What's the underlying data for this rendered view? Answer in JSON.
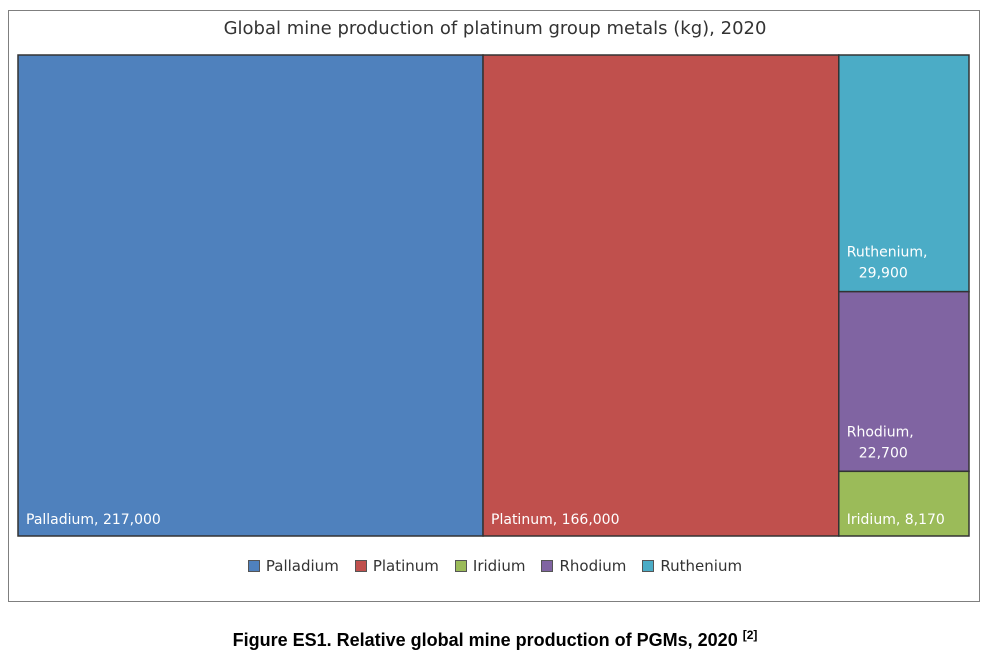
{
  "chart_data": {
    "type": "treemap",
    "title": "Global mine production of platinum group metals (kg), 2020",
    "items": [
      {
        "name": "Palladium",
        "value": 217000,
        "label": "Palladium, 217,000",
        "color": "#4f81bd"
      },
      {
        "name": "Platinum",
        "value": 166000,
        "label": "Platinum, 166,000",
        "color": "#c0504d"
      },
      {
        "name": "Ruthenium",
        "value": 29900,
        "label_lines": [
          "Ruthenium,",
          "29,900"
        ],
        "color": "#4bacc6"
      },
      {
        "name": "Rhodium",
        "value": 22700,
        "label_lines": [
          "Rhodium,",
          "22,700"
        ],
        "color": "#8064a2"
      },
      {
        "name": "Iridium",
        "value": 8170,
        "label": "Iridium, 8,170",
        "color": "#9bbb59"
      }
    ],
    "legend": [
      {
        "name": "Palladium",
        "color": "#4f81bd"
      },
      {
        "name": "Platinum",
        "color": "#c0504d"
      },
      {
        "name": "Iridium",
        "color": "#9bbb59"
      },
      {
        "name": "Rhodium",
        "color": "#8064a2"
      },
      {
        "name": "Ruthenium",
        "color": "#4bacc6"
      }
    ],
    "legend_position": "bottom"
  },
  "caption": {
    "text": "Figure ES1. Relative global mine production of PGMs, 2020",
    "ref": "[2]"
  }
}
